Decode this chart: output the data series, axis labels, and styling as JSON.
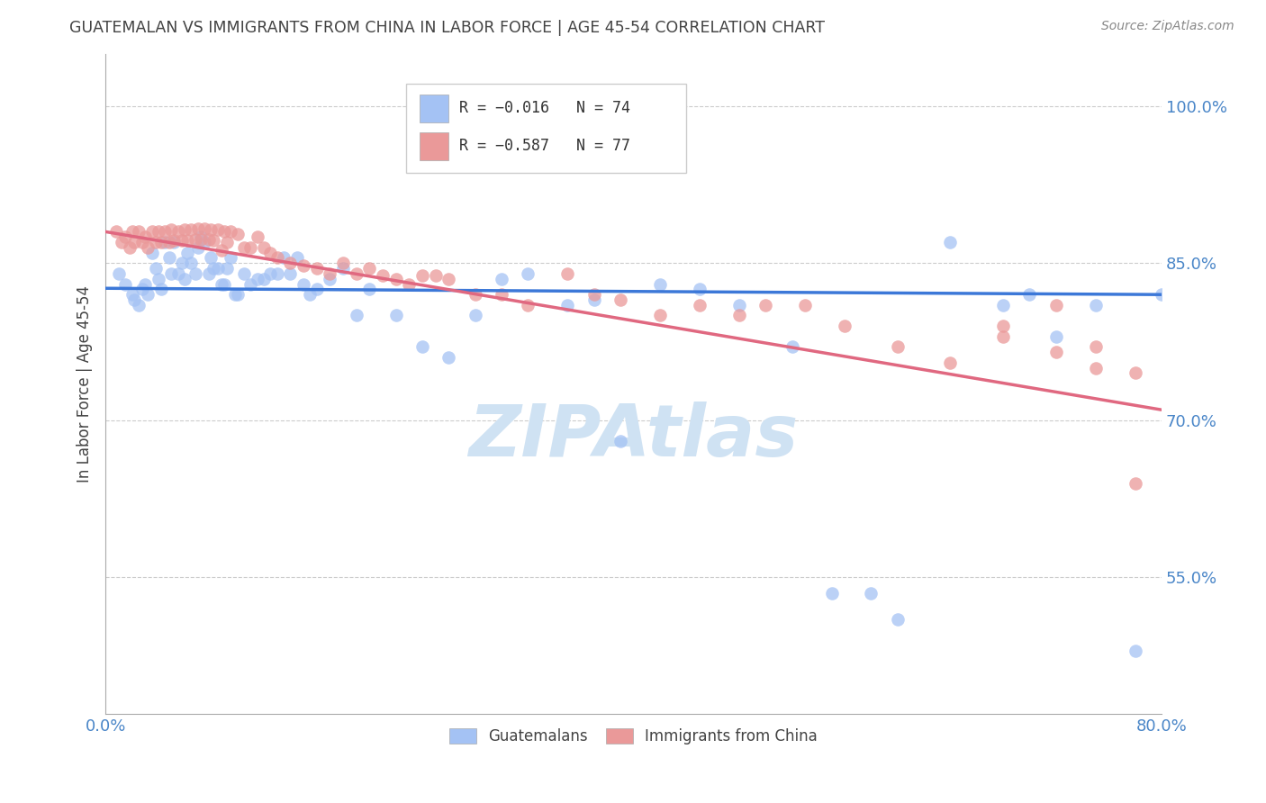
{
  "title": "GUATEMALAN VS IMMIGRANTS FROM CHINA IN LABOR FORCE | AGE 45-54 CORRELATION CHART",
  "source": "Source: ZipAtlas.com",
  "ylabel": "In Labor Force | Age 45-54",
  "xmin": 0.0,
  "xmax": 0.8,
  "ymin": 0.42,
  "ymax": 1.05,
  "yticks": [
    0.55,
    0.7,
    0.85,
    1.0
  ],
  "ytick_labels": [
    "55.0%",
    "70.0%",
    "85.0%",
    "100.0%"
  ],
  "xticks": [
    0.0,
    0.2,
    0.4,
    0.6,
    0.8
  ],
  "xtick_labels": [
    "0.0%",
    "",
    "",
    "",
    "80.0%"
  ],
  "blue_label": "Guatemalans",
  "pink_label": "Immigrants from China",
  "blue_r": "R = −0.016",
  "blue_n": "N = 74",
  "pink_r": "R = −0.587",
  "pink_n": "N = 77",
  "blue_color": "#a4c2f4",
  "pink_color": "#ea9999",
  "blue_line_color": "#3c78d8",
  "pink_line_color": "#e06880",
  "axis_color": "#4a86c8",
  "title_color": "#434343",
  "watermark_color": "#cfe2f3",
  "background_color": "#ffffff",
  "blue_scatter_x": [
    0.01,
    0.015,
    0.02,
    0.022,
    0.025,
    0.028,
    0.03,
    0.032,
    0.035,
    0.038,
    0.04,
    0.042,
    0.045,
    0.048,
    0.05,
    0.052,
    0.055,
    0.058,
    0.06,
    0.062,
    0.065,
    0.068,
    0.07,
    0.072,
    0.075,
    0.078,
    0.08,
    0.082,
    0.085,
    0.088,
    0.09,
    0.092,
    0.095,
    0.098,
    0.1,
    0.105,
    0.11,
    0.115,
    0.12,
    0.125,
    0.13,
    0.135,
    0.14,
    0.145,
    0.15,
    0.155,
    0.16,
    0.17,
    0.18,
    0.19,
    0.2,
    0.22,
    0.24,
    0.26,
    0.28,
    0.3,
    0.32,
    0.35,
    0.37,
    0.39,
    0.42,
    0.45,
    0.48,
    0.52,
    0.55,
    0.58,
    0.6,
    0.64,
    0.68,
    0.7,
    0.72,
    0.75,
    0.78,
    0.8
  ],
  "blue_scatter_y": [
    0.84,
    0.83,
    0.82,
    0.815,
    0.81,
    0.825,
    0.83,
    0.82,
    0.86,
    0.845,
    0.835,
    0.825,
    0.87,
    0.855,
    0.84,
    0.87,
    0.84,
    0.85,
    0.835,
    0.86,
    0.85,
    0.84,
    0.865,
    0.875,
    0.87,
    0.84,
    0.855,
    0.845,
    0.845,
    0.83,
    0.83,
    0.845,
    0.855,
    0.82,
    0.82,
    0.84,
    0.83,
    0.835,
    0.835,
    0.84,
    0.84,
    0.855,
    0.84,
    0.855,
    0.83,
    0.82,
    0.825,
    0.835,
    0.845,
    0.8,
    0.825,
    0.8,
    0.77,
    0.76,
    0.8,
    0.835,
    0.84,
    0.81,
    0.815,
    0.68,
    0.83,
    0.825,
    0.81,
    0.77,
    0.535,
    0.535,
    0.51,
    0.87,
    0.81,
    0.82,
    0.78,
    0.81,
    0.48,
    0.82
  ],
  "pink_scatter_x": [
    0.008,
    0.012,
    0.015,
    0.018,
    0.02,
    0.022,
    0.025,
    0.028,
    0.03,
    0.032,
    0.035,
    0.038,
    0.04,
    0.042,
    0.045,
    0.048,
    0.05,
    0.052,
    0.055,
    0.058,
    0.06,
    0.062,
    0.065,
    0.068,
    0.07,
    0.072,
    0.075,
    0.078,
    0.08,
    0.082,
    0.085,
    0.088,
    0.09,
    0.092,
    0.095,
    0.1,
    0.105,
    0.11,
    0.115,
    0.12,
    0.125,
    0.13,
    0.14,
    0.15,
    0.16,
    0.17,
    0.18,
    0.19,
    0.2,
    0.21,
    0.22,
    0.23,
    0.24,
    0.25,
    0.26,
    0.28,
    0.3,
    0.32,
    0.35,
    0.37,
    0.39,
    0.42,
    0.45,
    0.48,
    0.5,
    0.53,
    0.56,
    0.6,
    0.64,
    0.68,
    0.72,
    0.75,
    0.78,
    0.72,
    0.68,
    0.75,
    0.78
  ],
  "pink_scatter_y": [
    0.88,
    0.87,
    0.875,
    0.865,
    0.88,
    0.87,
    0.88,
    0.87,
    0.875,
    0.865,
    0.88,
    0.87,
    0.88,
    0.87,
    0.88,
    0.87,
    0.882,
    0.872,
    0.88,
    0.872,
    0.882,
    0.872,
    0.882,
    0.873,
    0.883,
    0.873,
    0.883,
    0.873,
    0.882,
    0.872,
    0.882,
    0.862,
    0.88,
    0.87,
    0.88,
    0.878,
    0.865,
    0.865,
    0.875,
    0.865,
    0.86,
    0.855,
    0.85,
    0.848,
    0.845,
    0.84,
    0.85,
    0.84,
    0.845,
    0.838,
    0.835,
    0.83,
    0.838,
    0.838,
    0.835,
    0.82,
    0.82,
    0.81,
    0.84,
    0.82,
    0.815,
    0.8,
    0.81,
    0.8,
    0.81,
    0.81,
    0.79,
    0.77,
    0.755,
    0.78,
    0.765,
    0.75,
    0.745,
    0.81,
    0.79,
    0.77,
    0.64
  ],
  "blue_line_x": [
    0.0,
    0.8
  ],
  "blue_line_y": [
    0.826,
    0.82
  ],
  "pink_line_x": [
    0.0,
    0.8
  ],
  "pink_line_y": [
    0.88,
    0.71
  ]
}
